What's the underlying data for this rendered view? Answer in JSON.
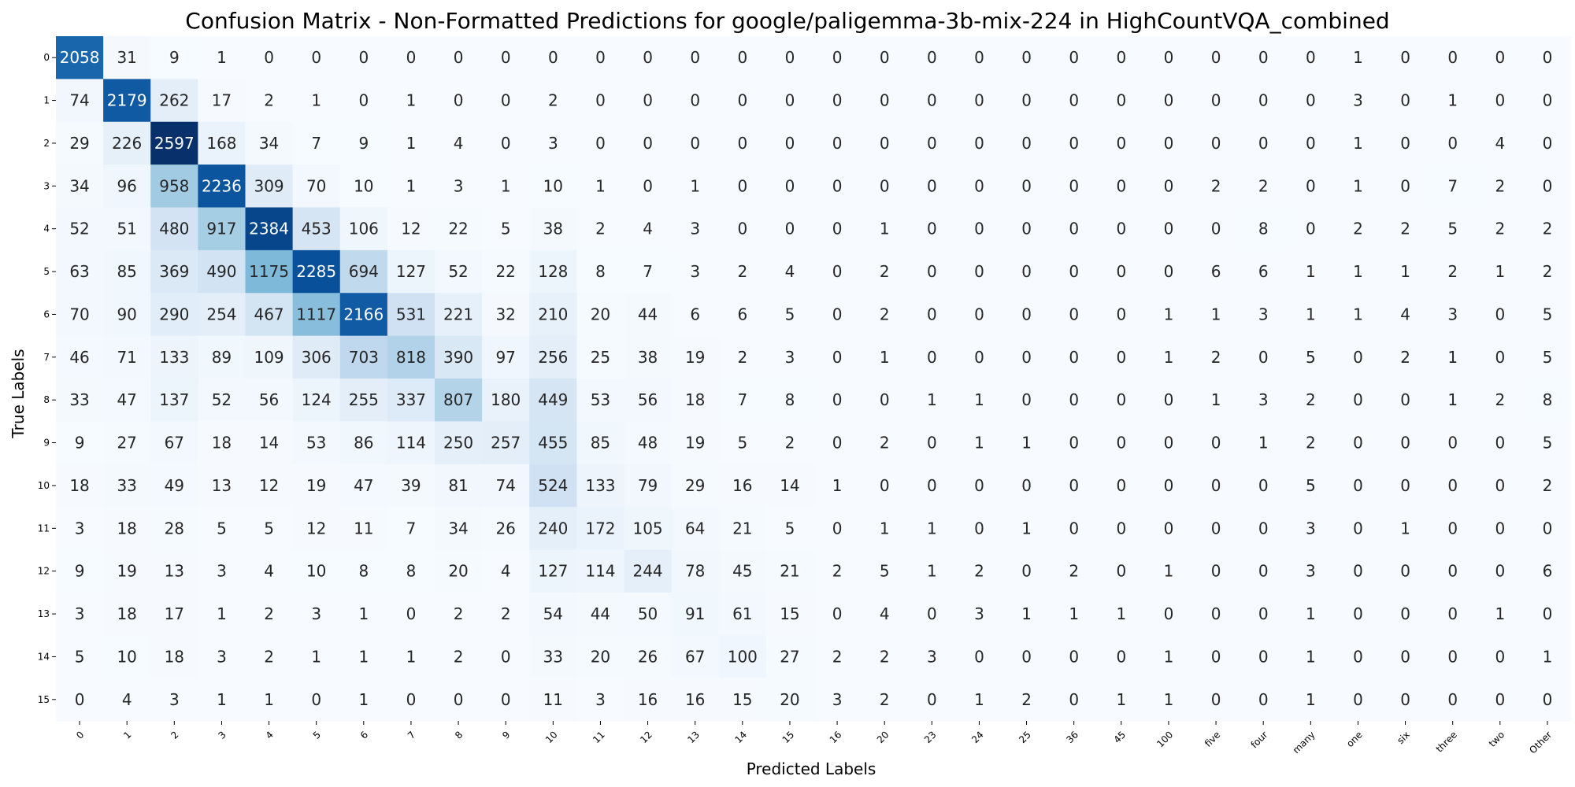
{
  "chart_data": {
    "type": "heatmap",
    "title": "Confusion Matrix - Non-Formatted Predictions for google/paligemma-3b-mix-224 in HighCountVQA_combined",
    "xlabel": "Predicted Labels",
    "ylabel": "True Labels",
    "colormap": "Blues",
    "colorbar": false,
    "annotated": true,
    "value_range": [
      0,
      2597
    ],
    "x_categories": [
      "0",
      "1",
      "2",
      "3",
      "4",
      "5",
      "6",
      "7",
      "8",
      "9",
      "10",
      "11",
      "12",
      "13",
      "14",
      "15",
      "16",
      "20",
      "23",
      "24",
      "25",
      "36",
      "45",
      "100",
      "five",
      "four",
      "many",
      "one",
      "six",
      "three",
      "two",
      "Other"
    ],
    "y_categories": [
      "0",
      "1",
      "2",
      "3",
      "4",
      "5",
      "6",
      "7",
      "8",
      "9",
      "10",
      "11",
      "12",
      "13",
      "14",
      "15"
    ],
    "values": [
      [
        2058,
        31,
        9,
        1,
        0,
        0,
        0,
        0,
        0,
        0,
        0,
        0,
        0,
        0,
        0,
        0,
        0,
        0,
        0,
        0,
        0,
        0,
        0,
        0,
        0,
        0,
        0,
        1,
        0,
        0,
        0,
        0
      ],
      [
        74,
        2179,
        262,
        17,
        2,
        1,
        0,
        1,
        0,
        0,
        2,
        0,
        0,
        0,
        0,
        0,
        0,
        0,
        0,
        0,
        0,
        0,
        0,
        0,
        0,
        0,
        0,
        3,
        0,
        1,
        0,
        0
      ],
      [
        29,
        226,
        2597,
        168,
        34,
        7,
        9,
        1,
        4,
        0,
        3,
        0,
        0,
        0,
        0,
        0,
        0,
        0,
        0,
        0,
        0,
        0,
        0,
        0,
        0,
        0,
        0,
        1,
        0,
        0,
        4,
        0
      ],
      [
        34,
        96,
        958,
        2236,
        309,
        70,
        10,
        1,
        3,
        1,
        10,
        1,
        0,
        1,
        0,
        0,
        0,
        0,
        0,
        0,
        0,
        0,
        0,
        0,
        2,
        2,
        0,
        1,
        0,
        7,
        2,
        0
      ],
      [
        52,
        51,
        480,
        917,
        2384,
        453,
        106,
        12,
        22,
        5,
        38,
        2,
        4,
        3,
        0,
        0,
        0,
        1,
        0,
        0,
        0,
        0,
        0,
        0,
        0,
        8,
        0,
        2,
        2,
        5,
        2,
        2
      ],
      [
        63,
        85,
        369,
        490,
        1175,
        2285,
        694,
        127,
        52,
        22,
        128,
        8,
        7,
        3,
        2,
        4,
        0,
        2,
        0,
        0,
        0,
        0,
        0,
        0,
        6,
        6,
        1,
        1,
        1,
        2,
        1,
        2
      ],
      [
        70,
        90,
        290,
        254,
        467,
        1117,
        2166,
        531,
        221,
        32,
        210,
        20,
        44,
        6,
        6,
        5,
        0,
        2,
        0,
        0,
        0,
        0,
        0,
        1,
        1,
        3,
        1,
        1,
        4,
        3,
        0,
        5
      ],
      [
        46,
        71,
        133,
        89,
        109,
        306,
        703,
        818,
        390,
        97,
        256,
        25,
        38,
        19,
        2,
        3,
        0,
        1,
        0,
        0,
        0,
        0,
        0,
        1,
        2,
        0,
        5,
        0,
        2,
        1,
        0,
        5
      ],
      [
        33,
        47,
        137,
        52,
        56,
        124,
        255,
        337,
        807,
        180,
        449,
        53,
        56,
        18,
        7,
        8,
        0,
        0,
        1,
        1,
        0,
        0,
        0,
        0,
        1,
        3,
        2,
        0,
        0,
        1,
        2,
        8
      ],
      [
        9,
        27,
        67,
        18,
        14,
        53,
        86,
        114,
        250,
        257,
        455,
        85,
        48,
        19,
        5,
        2,
        0,
        2,
        0,
        1,
        1,
        0,
        0,
        0,
        0,
        1,
        2,
        0,
        0,
        0,
        0,
        5
      ],
      [
        18,
        33,
        49,
        13,
        12,
        19,
        47,
        39,
        81,
        74,
        524,
        133,
        79,
        29,
        16,
        14,
        1,
        0,
        0,
        0,
        0,
        0,
        0,
        0,
        0,
        0,
        5,
        0,
        0,
        0,
        0,
        2
      ],
      [
        3,
        18,
        28,
        5,
        5,
        12,
        11,
        7,
        34,
        26,
        240,
        172,
        105,
        64,
        21,
        5,
        0,
        1,
        1,
        0,
        1,
        0,
        0,
        0,
        0,
        0,
        3,
        0,
        1,
        0,
        0,
        0
      ],
      [
        9,
        19,
        13,
        3,
        4,
        10,
        8,
        8,
        20,
        4,
        127,
        114,
        244,
        78,
        45,
        21,
        2,
        5,
        1,
        2,
        0,
        2,
        0,
        1,
        0,
        0,
        3,
        0,
        0,
        0,
        0,
        6
      ],
      [
        3,
        18,
        17,
        1,
        2,
        3,
        1,
        0,
        2,
        2,
        54,
        44,
        50,
        91,
        61,
        15,
        0,
        4,
        0,
        3,
        1,
        1,
        1,
        0,
        0,
        0,
        1,
        0,
        0,
        0,
        1,
        0
      ],
      [
        5,
        10,
        18,
        3,
        2,
        1,
        1,
        1,
        2,
        0,
        33,
        20,
        26,
        67,
        100,
        27,
        2,
        2,
        3,
        0,
        0,
        0,
        0,
        1,
        0,
        0,
        1,
        0,
        0,
        0,
        0,
        1
      ],
      [
        0,
        4,
        3,
        1,
        1,
        0,
        1,
        0,
        0,
        0,
        11,
        3,
        16,
        16,
        15,
        20,
        3,
        2,
        0,
        1,
        2,
        0,
        1,
        1,
        0,
        0,
        1,
        0,
        0,
        0,
        0,
        0
      ]
    ]
  }
}
